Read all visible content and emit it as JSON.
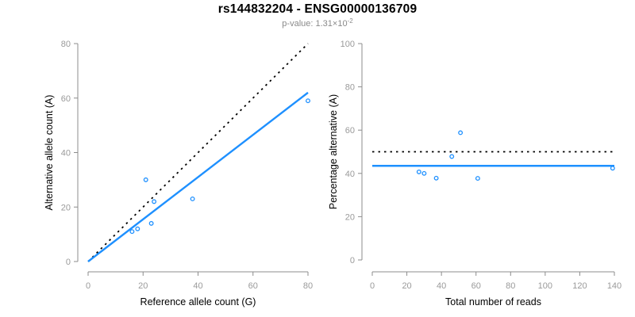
{
  "header": {
    "title": "rs144832204 - ENSG00000136709",
    "pvalue_label": "p-value: 1.31×10",
    "pvalue_exponent": "-2"
  },
  "colors": {
    "accent_blue": "#1E90FF",
    "identity_line": "#000000",
    "axis_line": "#8C8C8C",
    "tick_label": "#9A9A9A",
    "axis_label": "#000000",
    "subtitle_gray": "#8A8A8A"
  },
  "chart_data": [
    {
      "type": "scatter",
      "panel": "left",
      "xlabel": "Reference allele count (G)",
      "ylabel": "Alternative allele count (A)",
      "xlim": [
        0,
        80
      ],
      "ylim": [
        0,
        80
      ],
      "xticks": [
        0,
        20,
        40,
        60,
        80
      ],
      "yticks": [
        0,
        20,
        40,
        60,
        80
      ],
      "marker": "open-circle",
      "grid": false,
      "points": [
        [
          16,
          11
        ],
        [
          18,
          12
        ],
        [
          21,
          30
        ],
        [
          23,
          14
        ],
        [
          24,
          22
        ],
        [
          38,
          23
        ],
        [
          80,
          59
        ]
      ],
      "lines": [
        {
          "name": "identity-line",
          "style": "dotted",
          "color": "#000000",
          "from": [
            0,
            0
          ],
          "to": [
            80,
            80
          ]
        },
        {
          "name": "fit-line",
          "style": "solid",
          "color": "#1E90FF",
          "from": [
            0,
            0
          ],
          "to": [
            80,
            62
          ]
        }
      ]
    },
    {
      "type": "scatter",
      "panel": "right",
      "xlabel": "Total number of reads",
      "ylabel": "Percentage alternative (A)",
      "xlim": [
        0,
        140
      ],
      "ylim": [
        0,
        100
      ],
      "xticks": [
        0,
        20,
        40,
        60,
        80,
        100,
        120,
        140
      ],
      "yticks": [
        0,
        20,
        40,
        60,
        80,
        100
      ],
      "marker": "open-circle",
      "grid": false,
      "points": [
        [
          27,
          40.7
        ],
        [
          30,
          40.0
        ],
        [
          37,
          37.8
        ],
        [
          46,
          47.8
        ],
        [
          51,
          58.8
        ],
        [
          61,
          37.7
        ],
        [
          139,
          42.4
        ]
      ],
      "lines": [
        {
          "name": "expected-50pct-line",
          "style": "dotted",
          "color": "#000000",
          "from": [
            0,
            50
          ],
          "to": [
            140,
            50
          ]
        },
        {
          "name": "mean-percentage-line",
          "style": "solid",
          "color": "#1E90FF",
          "from": [
            0,
            43.5
          ],
          "to": [
            140,
            43.5
          ]
        }
      ]
    }
  ]
}
